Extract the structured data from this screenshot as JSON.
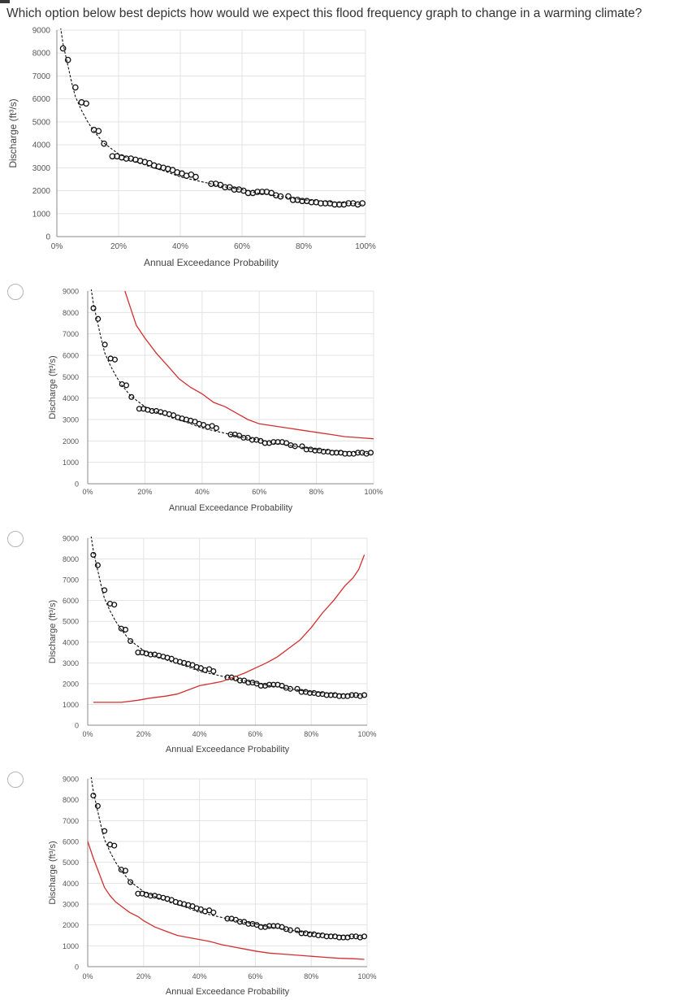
{
  "question": "Which option below best depicts how would we expect this flood frequency graph to change in a warming climate?",
  "options": [
    {
      "id": "option-1",
      "selected": false
    },
    {
      "id": "option-2",
      "selected": false
    },
    {
      "id": "option-3",
      "selected": false
    }
  ],
  "chart_data": [
    {
      "type": "scatter",
      "name": "baseline",
      "xlabel": "Annual Exceedance Probability",
      "ylabel": "Discharge (ft³/s)",
      "xlim": [
        0,
        100
      ],
      "ylim": [
        0,
        9000
      ],
      "x_ticks": [
        "0%",
        "20%",
        "40%",
        "60%",
        "80%",
        "100%"
      ],
      "y_ticks": [
        "0",
        "1000",
        "2000",
        "3000",
        "4000",
        "5000",
        "6000",
        "7000",
        "8000",
        "9000"
      ],
      "points": {
        "x": [
          2,
          3.6,
          6,
          8,
          9.5,
          12,
          13.5,
          15.3,
          18,
          19.5,
          21,
          22.5,
          24,
          25.5,
          27,
          28.5,
          30,
          31.5,
          33,
          34.5,
          36,
          37.5,
          39,
          40.5,
          42,
          43.5,
          45,
          50,
          51.5,
          53,
          54.5,
          56,
          57.5,
          59,
          60.5,
          62,
          63.5,
          65,
          66.5,
          68,
          69.5,
          71,
          72.5,
          75,
          76.5,
          78,
          79.5,
          81,
          82.5,
          84,
          85.5,
          87,
          88.5,
          90,
          91.5,
          93,
          94.5,
          96,
          97.5,
          99
        ],
        "y": [
          8200,
          7700,
          6500,
          5850,
          5800,
          4650,
          4600,
          4050,
          3500,
          3500,
          3450,
          3400,
          3400,
          3350,
          3300,
          3250,
          3200,
          3100,
          3050,
          3000,
          2950,
          2900,
          2800,
          2750,
          2650,
          2700,
          2600,
          2300,
          2300,
          2250,
          2150,
          2150,
          2050,
          2050,
          2000,
          1900,
          1900,
          1950,
          1950,
          1950,
          1900,
          1800,
          1750,
          1750,
          1600,
          1600,
          1550,
          1550,
          1500,
          1500,
          1450,
          1450,
          1450,
          1400,
          1400,
          1400,
          1450,
          1450,
          1400,
          1450
        ]
      },
      "fit_line": {
        "x": [
          1,
          2,
          3,
          4,
          5,
          6,
          8,
          10,
          12,
          15,
          18,
          20,
          25,
          30,
          35,
          40,
          45,
          50,
          55,
          60,
          65,
          70,
          75,
          80,
          85,
          90,
          95,
          99
        ],
        "y": [
          9300,
          8400,
          7800,
          7200,
          6600,
          6100,
          5500,
          5000,
          4600,
          4100,
          3800,
          3600,
          3300,
          3050,
          2850,
          2600,
          2450,
          2300,
          2150,
          2050,
          1900,
          1800,
          1700,
          1600,
          1550,
          1500,
          1450,
          1400
        ]
      }
    },
    {
      "type": "scatter",
      "name": "option-1",
      "xlabel": "Annual Exceedance Probability",
      "ylabel": "Discharge (ft³/s)",
      "xlim": [
        0,
        100
      ],
      "ylim": [
        0,
        9000
      ],
      "x_ticks": [
        "0%",
        "20%",
        "40%",
        "60%",
        "80%",
        "100%"
      ],
      "y_ticks": [
        "0",
        "1000",
        "2000",
        "3000",
        "4000",
        "5000",
        "6000",
        "7000",
        "8000",
        "9000"
      ],
      "series_color": "#d32f2f",
      "red_line": {
        "x": [
          13,
          15,
          17,
          20,
          24,
          28,
          32,
          36,
          40,
          44,
          48,
          52,
          56,
          60,
          65,
          70,
          75,
          80,
          85,
          90,
          95,
          100
        ],
        "y": [
          9000,
          8200,
          7400,
          6800,
          6100,
          5500,
          4900,
          4500,
          4200,
          3800,
          3600,
          3300,
          3000,
          2800,
          2700,
          2600,
          2500,
          2400,
          2300,
          2200,
          2150,
          2100
        ]
      }
    },
    {
      "type": "scatter",
      "name": "option-2",
      "xlabel": "Annual Exceedance Probability",
      "ylabel": "Discharge (ft³/s)",
      "xlim": [
        0,
        100
      ],
      "ylim": [
        0,
        9000
      ],
      "x_ticks": [
        "0%",
        "20%",
        "40%",
        "60%",
        "80%",
        "100%"
      ],
      "y_ticks": [
        "0",
        "1000",
        "2000",
        "3000",
        "4000",
        "5000",
        "6000",
        "7000",
        "8000",
        "9000"
      ],
      "series_color": "#d32f2f",
      "red_line": {
        "x": [
          2,
          8,
          12,
          18,
          22,
          28,
          32,
          36,
          40,
          44,
          48,
          52,
          56,
          60,
          64,
          68,
          72,
          76,
          80,
          84,
          88,
          92,
          95,
          97,
          99
        ],
        "y": [
          1100,
          1100,
          1100,
          1200,
          1300,
          1400,
          1500,
          1700,
          1900,
          2000,
          2100,
          2300,
          2500,
          2750,
          3000,
          3300,
          3700,
          4100,
          4700,
          5400,
          6000,
          6700,
          7100,
          7500,
          8200
        ]
      }
    },
    {
      "type": "scatter",
      "name": "option-3",
      "xlabel": "Annual Exceedance Probability",
      "ylabel": "Discharge (ft³/s)",
      "xlim": [
        0,
        100
      ],
      "ylim": [
        0,
        9000
      ],
      "x_ticks": [
        "0%",
        "20%",
        "40%",
        "60%",
        "80%",
        "100%"
      ],
      "y_ticks": [
        "0",
        "1000",
        "2000",
        "3000",
        "4000",
        "5000",
        "6000",
        "7000",
        "8000",
        "9000"
      ],
      "series_color": "#d32f2f",
      "red_line": {
        "x": [
          0,
          2,
          4,
          6,
          8,
          10,
          12,
          15,
          18,
          20,
          24,
          28,
          32,
          36,
          40,
          44,
          48,
          52,
          56,
          60,
          65,
          70,
          75,
          80,
          85,
          90,
          95,
          99
        ],
        "y": [
          6000,
          5200,
          4500,
          3800,
          3400,
          3100,
          2900,
          2600,
          2400,
          2200,
          1900,
          1700,
          1500,
          1400,
          1300,
          1200,
          1050,
          950,
          850,
          750,
          650,
          600,
          550,
          500,
          450,
          400,
          380,
          350
        ]
      }
    }
  ]
}
